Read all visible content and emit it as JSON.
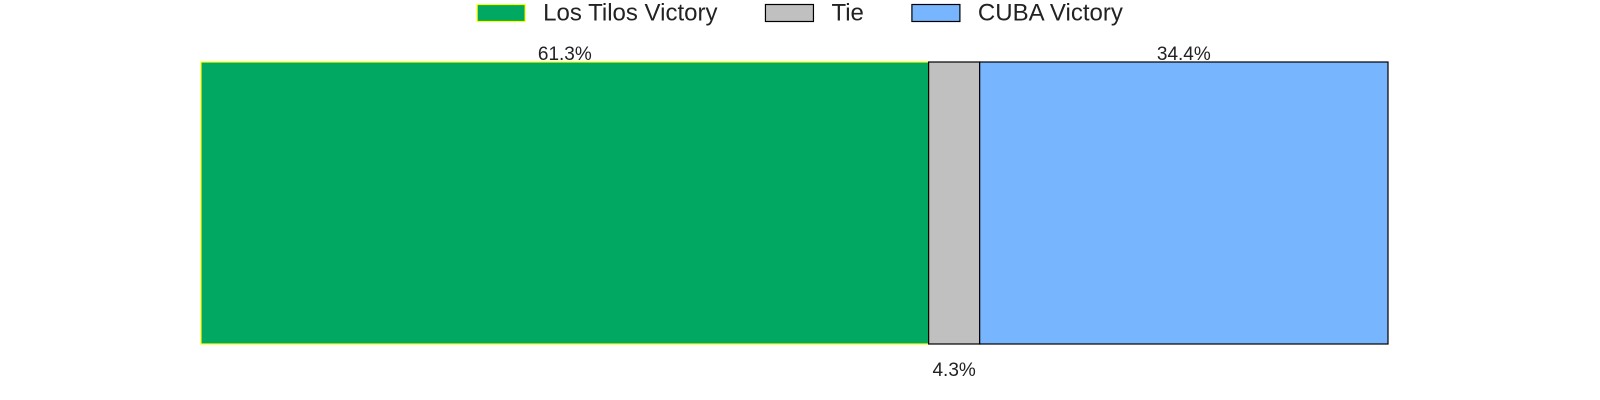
{
  "chart_data": {
    "type": "bar",
    "orientation": "horizontal-stacked",
    "title": "",
    "xlabel": "",
    "ylabel": "",
    "xlim": [
      0,
      100
    ],
    "grid": false,
    "legend_position": "top-center",
    "series": [
      {
        "name": "Los Tilos Victory",
        "value": 61.3,
        "label": "61.3%",
        "color": "#00A862",
        "edge_color": "#FFFF00",
        "label_position": "above"
      },
      {
        "name": "Tie",
        "value": 4.3,
        "label": "4.3%",
        "color": "#C0C0C0",
        "edge_color": "#000000",
        "label_position": "below"
      },
      {
        "name": "CUBA Victory",
        "value": 34.4,
        "label": "34.4%",
        "color": "#77B5FE",
        "edge_color": "#000000",
        "label_position": "above"
      }
    ]
  }
}
